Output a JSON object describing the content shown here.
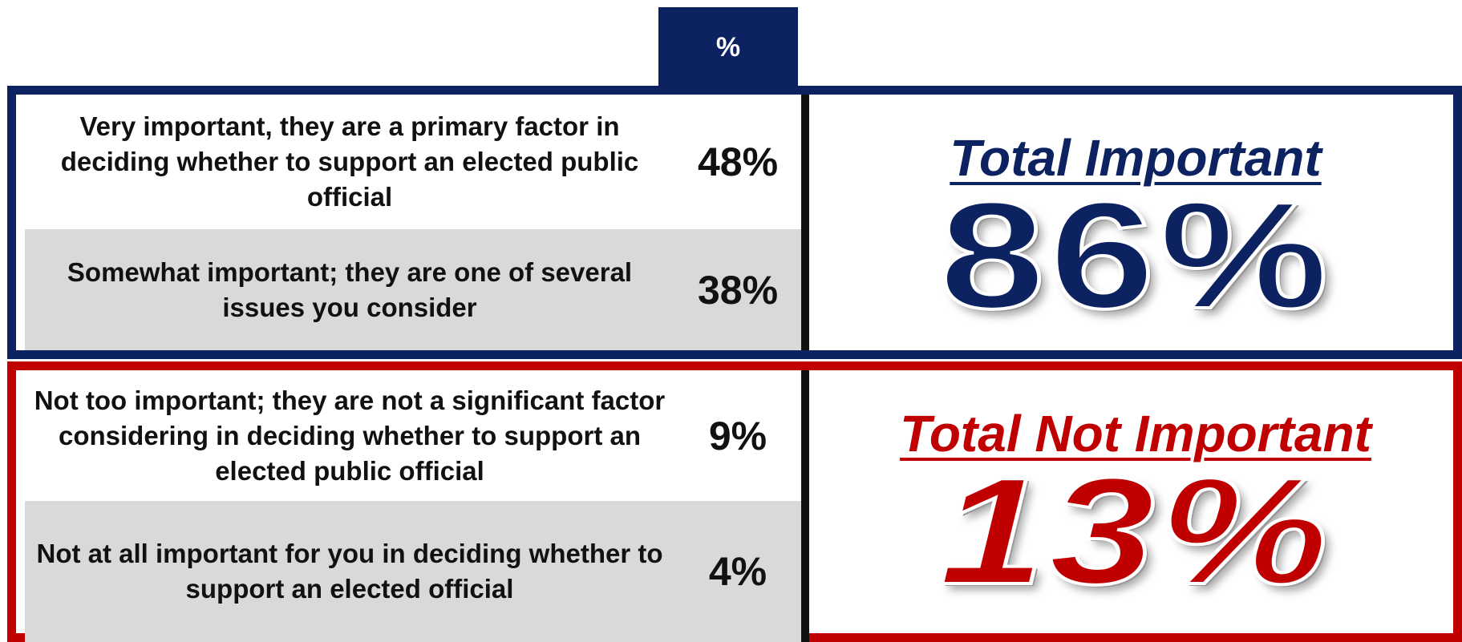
{
  "table": {
    "header": "%",
    "groups": [
      {
        "rows": [
          {
            "label": "Very important, they are a primary factor in deciding whether to support an elected public official",
            "value": "48%"
          },
          {
            "label": "Somewhat important; they are one of several issues you consider",
            "value": "38%"
          }
        ],
        "total_title": "Total Important",
        "total_value": "86%"
      },
      {
        "rows": [
          {
            "label": "Not too important; they are not a significant factor considering in deciding whether to support an elected public official",
            "value": "9%"
          },
          {
            "label": "Not at all important for you in deciding whether to support an elected official",
            "value": "4%"
          }
        ],
        "total_title": "Total Not Important",
        "total_value": "13%"
      }
    ]
  }
}
